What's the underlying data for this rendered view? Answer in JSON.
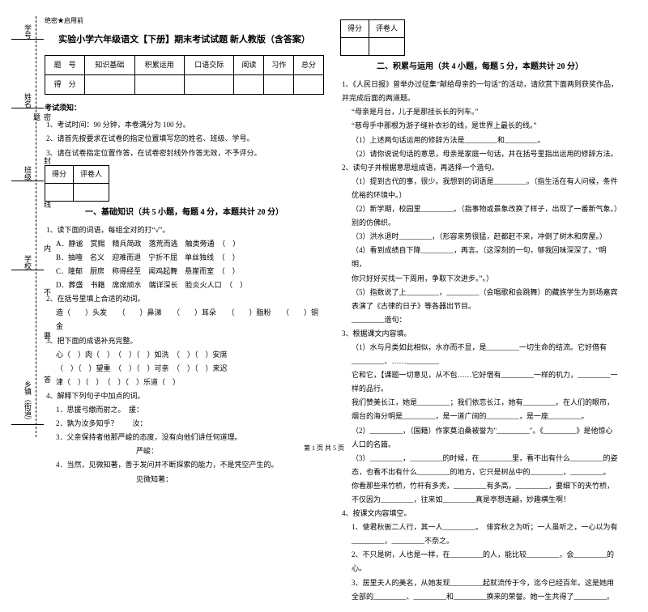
{
  "margin": {
    "l1": "学号",
    "l2": "姓名",
    "l3": "班级",
    "l4": "学校",
    "l5": "乡镇（街道）",
    "fold": "密　封　线　内　不　要　答　题"
  },
  "left": {
    "tag": "绝密★启用前",
    "title": "实验小学六年级语文【下册】期末考试试题 新人教版（含答案）",
    "scoreHeaders": [
      "题　号",
      "知识基础",
      "积累运用",
      "口语交际",
      "阅读",
      "习作",
      "总分"
    ],
    "scoreRow": "得　分",
    "noticeTitle": "考试须知：",
    "notices": [
      "1、考试时间：90 分钟，本卷满分为 100 分。",
      "2、请首先按要求在试卷的指定位置填写您的姓名、班级、学号。",
      "3、请在试卷指定位置作答，在试卷密封线外作答无效，不予评分。"
    ],
    "smallScore": [
      "得分",
      "评卷人"
    ],
    "section1": "一、基础知识（共 5 小题，每题 4 分，本题共计 20 分）",
    "q1": "1、读下面的词语，每组全对的打“√”。",
    "q1rows": [
      [
        "A．静谧",
        "赏赐",
        "精兵简政",
        "落荒而逃",
        "触类旁通",
        "（　）"
      ],
      [
        "B．抽噎",
        "名义",
        "迎难而退",
        "宁折不屈",
        "单丝独线",
        "（　）"
      ],
      [
        "C．隆郁",
        "厨房",
        "称得经至",
        "闻鸡起舞",
        "悬崖而室",
        "（　）"
      ],
      [
        "D．葬盛",
        "书籍",
        "席席顽水",
        "端详深长",
        "脸炎火人口",
        "（　）"
      ]
    ],
    "q2": "2、在括号里填上合适的动词。",
    "q2line": "造（　　）头发　　（　　）鼻涕　　（　　）耳朵　　（　　）脂粉　　（　　）铜金",
    "q3": "3、把下面的成语补充完整。",
    "q3lines": [
      "心（　）肉（　）　（　）（　）如洗　（　）（　）安席",
      "（　）（　）望重　（　）（　）可亲　（　）（　）来迟",
      "津（　）（　）　（　）（　）乐道（　）"
    ],
    "q4": "4、解释下列句子中加点的词。",
    "q4lines": [
      "1．思援弓缴而射之。　援：",
      "2．孰为汝多知乎？　　汝：",
      "3．父亲保持者他那严峻的态度，没有向他们讲任何道理。",
      "　　　　　　　　　　　严峻：",
      "4．当然，见微知著，善于发问并不断探索的能力，不是凭空产生的。",
      "　　　　　　　　　　　见微知著："
    ]
  },
  "right": {
    "smallScore": [
      "得分",
      "评卷人"
    ],
    "section2": "二、积累与运用（共 4 小题，每题 5 分，本题共计 20 分）",
    "q1": "1、《人民日报》曾举办过征集“献给母亲的一句话”的活动，请欣赏下面两则获奖作品，并完成后面的两道题。",
    "q1lines": [
      "“母亲是月台，儿子是那挂长长的列车。”",
      "“慈母手中那根为游子缝补衣衫的线，是世界上最长的线。”",
      "（1）上述两句话运用的修辞方法是_________和_________。",
      "（2）请你说说句话的意思，母亲是家庭一句话，并在括号里指出运用的修辞方法。"
    ],
    "q2": "2、读句子并根据意思组成语，再选择一个造句。",
    "q2lines": [
      "（1）提到古代的事，很少。我想到的词语是_________。（指生活在有人问候，条件优裕的环境中。）",
      "（2）新学期，校园里_________。（指事物或景象改换了样子，出现了一番新气象。）",
      "别的仿佛织。",
      "（3）洪水退时_________，（形容来势很猛，赶都赶不来，冲倒了树木和房屋。）",
      "（4）看到成绩自下降_________，再言。（这深刻的一句，够我回味深深了。“明明，",
      "你只好好买找一下周用，争取下次进步。”。）",
      "（5）指数说了上_________，_________（会唱歌和会跳舞）的藏族学生为到场嘉宾表演了《古律的日子》等各器出节目。",
      "_________造句："
    ],
    "q3": "3、根据课文内容填。",
    "q3lines": [
      "（1）水与月类如此相似，水亦而不显，是_________一切生命的结流。它好借有_________、……_________",
      "它和它，【课题一切意见，从不包……它好借有_________一样的机力，_________一样的品行。",
      "我们赞美长江，她是_________；我们依恋长江，她有_________。在人们的眼帘，烟台的海分明是_________，是一道广阔的_________，是一座_________。",
      "（2）_________，（国籍）作家莫泊桑被誉为\"_________\"。《_________》是他惊心人口的名篇。",
      "（3）_________，_________的时候，在_________里，看不出有什么_________的姿态，也看不出有什么_________的地方，它只是树丛中的_________，_________。",
      "你看那些来竹桥，竹杆有多秃，_________有多高，_________，要细下的夹竹桥，不仅因为_________，往来如_________真是亭想连翩，妙趣横生啊！"
    ],
    "q4": "4、按课文内容填空。",
    "q4lines": [
      "1、使君秋衙二人行，其一人_________。　俳弈秋之为听；一人虽听之，一心以为有_________，_________不奈之。",
      "2、不只是树，人也是一样，在_________的人，能比较_________，会_________的心。",
      "3、居里夫人的美名，从她发现_________起就流传于今，迄今已经百年。这是她用全部的_________、_________和_________换来的荣誉。她一生共得了_________。"
    ]
  },
  "footer": "第 1 页 共 5 页"
}
